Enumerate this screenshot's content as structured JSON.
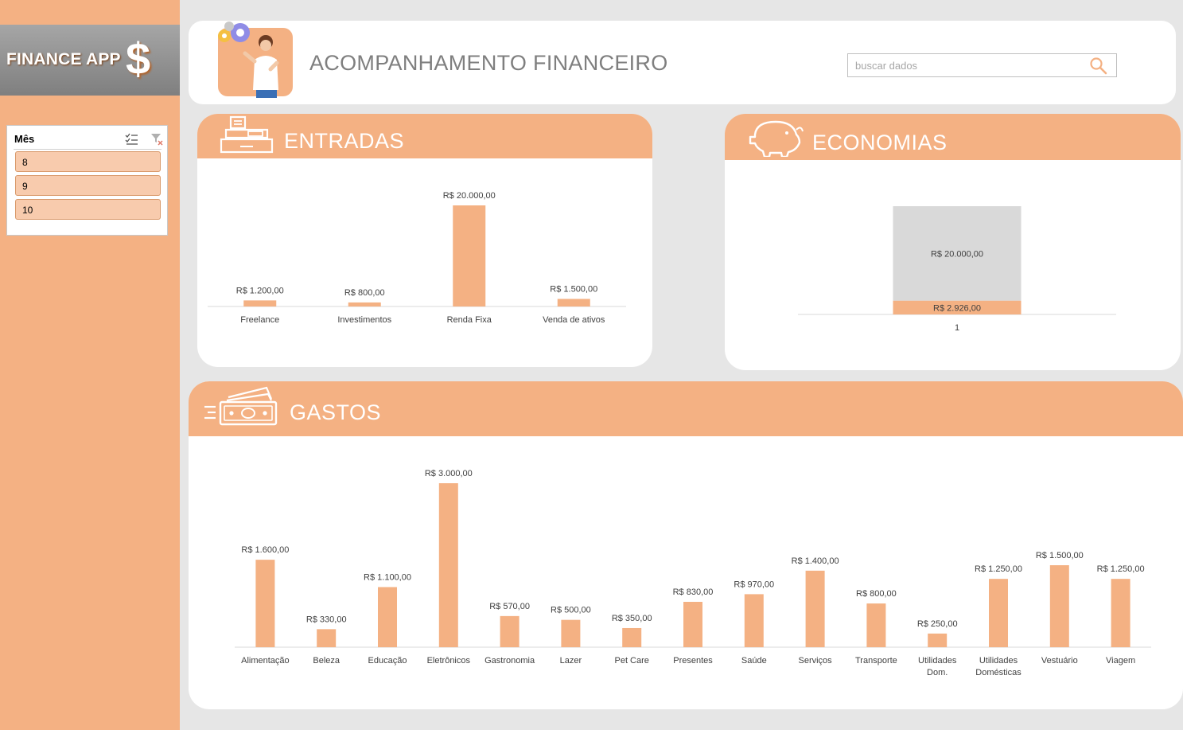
{
  "app": {
    "logo_text": "FINANCE APP",
    "logo_symbol": "$"
  },
  "slicer": {
    "title": "Mês",
    "items": [
      "8",
      "9",
      "10"
    ]
  },
  "header": {
    "title": "ACOMPANHAMENTO FINANCEIRO",
    "search_placeholder": "buscar dados"
  },
  "sections": {
    "entradas": "ENTRADAS",
    "economias": "ECONOMIAS",
    "gastos": "GASTOS"
  },
  "colors": {
    "accent": "#f4b183",
    "bar": "#f4b183",
    "gray_bar": "#d9d9d9",
    "title_gray": "#7f7f7f",
    "slicer_item": "#f8cbad"
  },
  "chart_data": [
    {
      "id": "entradas",
      "type": "bar",
      "categories": [
        "Freelance",
        "Investimentos",
        "Renda Fixa",
        "Venda de ativos"
      ],
      "values": [
        1200,
        800,
        20000,
        1500
      ],
      "labels": [
        "R$ 1.200,00",
        "R$ 800,00",
        "R$ 20.000,00",
        "R$ 1.500,00"
      ],
      "ylim": [
        0,
        20000
      ]
    },
    {
      "id": "economias",
      "type": "bar",
      "stacked": true,
      "categories": [
        "1"
      ],
      "series": [
        {
          "values": [
            2926
          ],
          "labels": [
            "R$ 2.926,00"
          ],
          "color": "#f4b183"
        },
        {
          "values": [
            20000
          ],
          "labels": [
            "R$ 20.000,00"
          ],
          "color": "#d9d9d9"
        }
      ],
      "ylim": [
        0,
        22926
      ]
    },
    {
      "id": "gastos",
      "type": "bar",
      "categories": [
        "Alimentação",
        "Beleza",
        "Educação",
        "Eletrônicos",
        "Gastronomia",
        "Lazer",
        "Pet Care",
        "Presentes",
        "Saúde",
        "Serviços",
        "Transporte",
        "Utilidades Dom.",
        "Utilidades Domésticas",
        "Vestuário",
        "Viagem"
      ],
      "category_lines": [
        [
          "Alimentação"
        ],
        [
          "Beleza"
        ],
        [
          "Educação"
        ],
        [
          "Eletrônicos"
        ],
        [
          "Gastronomia"
        ],
        [
          "Lazer"
        ],
        [
          "Pet Care"
        ],
        [
          "Presentes"
        ],
        [
          "Saúde"
        ],
        [
          "Serviços"
        ],
        [
          "Transporte"
        ],
        [
          "Utilidades",
          "Dom."
        ],
        [
          "Utilidades",
          "Domésticas"
        ],
        [
          "Vestuário"
        ],
        [
          "Viagem"
        ]
      ],
      "values": [
        1600,
        330,
        1100,
        3000,
        570,
        500,
        350,
        830,
        970,
        1400,
        800,
        250,
        1250,
        1500,
        1250
      ],
      "labels": [
        "R$ 1.600,00",
        "R$ 330,00",
        "R$ 1.100,00",
        "R$ 3.000,00",
        "R$ 570,00",
        "R$ 500,00",
        "R$ 350,00",
        "R$ 830,00",
        "R$ 970,00",
        "R$ 1.400,00",
        "R$ 800,00",
        "R$ 250,00",
        "R$ 1.250,00",
        "R$ 1.500,00",
        "R$ 1.250,00"
      ],
      "ylim": [
        0,
        3000
      ]
    }
  ]
}
